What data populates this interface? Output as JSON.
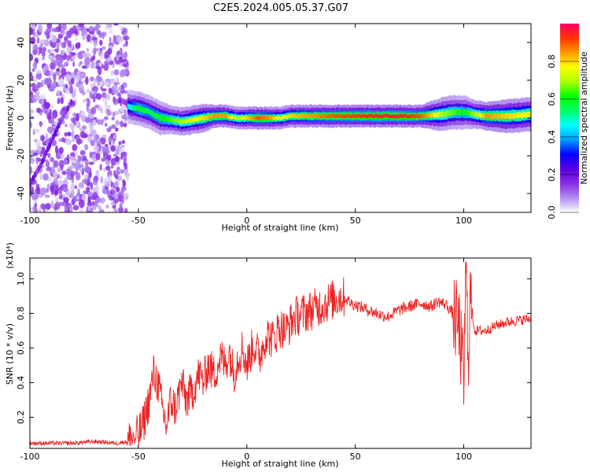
{
  "title": "C2E5.2024.005.05.37.G07",
  "chart_data": [
    {
      "type": "heatmap",
      "xlabel": "Height of straight line (km)",
      "ylabel": "Frequency (Hz)",
      "xlim": [
        -100,
        131
      ],
      "ylim": [
        -50,
        50
      ],
      "x_ticks": [
        -100,
        -50,
        0,
        50,
        100
      ],
      "y_ticks": [
        -40,
        -20,
        0,
        20,
        40
      ],
      "colorbar": {
        "label": "Normalized spectral amplitude",
        "range": [
          0,
          1
        ],
        "ticks": [
          "0.0",
          "0.2",
          "0.4",
          "0.6",
          "0.8"
        ],
        "colormap": [
          "#ffffff",
          "#b08ef0",
          "#8a2be2",
          "#5a00e0",
          "#0000ff",
          "#00a0ff",
          "#00ffff",
          "#00ff66",
          "#00ff00",
          "#aaff00",
          "#ffff00",
          "#ff9900",
          "#ff3300",
          "#ff0066"
        ]
      },
      "noise_region": {
        "x_range": [
          -100,
          -55
        ],
        "freq_range": [
          -50,
          50
        ],
        "amplitude": 0.08
      },
      "diagonal_streak": {
        "x": [
          -100,
          -95,
          -90,
          -85,
          -80
        ],
        "freq": [
          -35,
          -25,
          -12,
          0,
          10
        ]
      },
      "signal_track": {
        "x": [
          -55,
          -50,
          -45,
          -40,
          -35,
          -30,
          -25,
          -20,
          -15,
          -10,
          -5,
          0,
          5,
          10,
          15,
          20,
          30,
          40,
          50,
          60,
          70,
          80,
          90,
          95,
          100,
          105,
          110,
          120,
          131
        ],
        "freq": [
          6,
          5,
          3,
          0,
          -1,
          -2,
          -1,
          0,
          1,
          1,
          0,
          0,
          0,
          0,
          0,
          1,
          1,
          1,
          1,
          1,
          1,
          1,
          2,
          3,
          3,
          2,
          1,
          1,
          2
        ],
        "amplitude": [
          0.45,
          0.6,
          0.55,
          0.6,
          0.65,
          0.7,
          0.75,
          0.8,
          0.85,
          0.85,
          0.7,
          0.8,
          0.9,
          0.85,
          0.75,
          0.8,
          0.85,
          0.9,
          0.92,
          0.95,
          0.95,
          0.9,
          0.7,
          0.65,
          0.6,
          0.7,
          0.85,
          0.8,
          0.75
        ],
        "halfwidth_hz": [
          3,
          3,
          3,
          3,
          2.5,
          2.5,
          2.5,
          2.5,
          2,
          2,
          2,
          2,
          2,
          2,
          2,
          2,
          2,
          2,
          2,
          2,
          2,
          2,
          3,
          3,
          3,
          2.5,
          2.5,
          3,
          3
        ]
      }
    },
    {
      "type": "line",
      "xlabel": "Height of straight line (km)",
      "ylabel": "SNR (10 * v/v)",
      "y_multiplier": "(x10⁴)",
      "xlim": [
        -100,
        131
      ],
      "ylim": [
        0.02,
        1.12
      ],
      "x_ticks": [
        -100,
        -50,
        0,
        50,
        100
      ],
      "y_ticks": [
        0.2,
        0.4,
        0.6,
        0.8,
        1.0
      ],
      "color": "#ee2222",
      "series": [
        {
          "x": [
            -100,
            -90,
            -80,
            -70,
            -60,
            -55,
            -50,
            -48,
            -45,
            -43,
            -41,
            -39,
            -37,
            -35,
            -33,
            -30,
            -28,
            -25,
            -22,
            -20,
            -18,
            -15,
            -12,
            -10,
            -8,
            -6,
            -4,
            -2,
            0,
            3,
            6,
            9,
            12,
            15,
            18,
            22,
            26,
            30,
            35,
            40,
            44,
            48,
            52,
            56,
            60,
            65,
            70,
            75,
            80,
            85,
            88,
            92,
            95,
            98,
            100,
            101,
            102,
            103,
            105,
            110,
            115,
            120,
            125,
            131
          ],
          "y": [
            0.05,
            0.05,
            0.05,
            0.06,
            0.05,
            0.06,
            0.1,
            0.15,
            0.3,
            0.45,
            0.4,
            0.25,
            0.15,
            0.3,
            0.25,
            0.4,
            0.3,
            0.35,
            0.45,
            0.4,
            0.5,
            0.45,
            0.55,
            0.5,
            0.58,
            0.45,
            0.55,
            0.6,
            0.5,
            0.62,
            0.55,
            0.68,
            0.65,
            0.72,
            0.7,
            0.78,
            0.8,
            0.82,
            0.85,
            0.88,
            0.9,
            0.86,
            0.84,
            0.82,
            0.8,
            0.78,
            0.82,
            0.84,
            0.86,
            0.84,
            0.87,
            0.85,
            0.8,
            0.7,
            0.4,
            1.05,
            0.55,
            0.9,
            0.7,
            0.7,
            0.73,
            0.75,
            0.76,
            0.77
          ]
        }
      ]
    }
  ]
}
